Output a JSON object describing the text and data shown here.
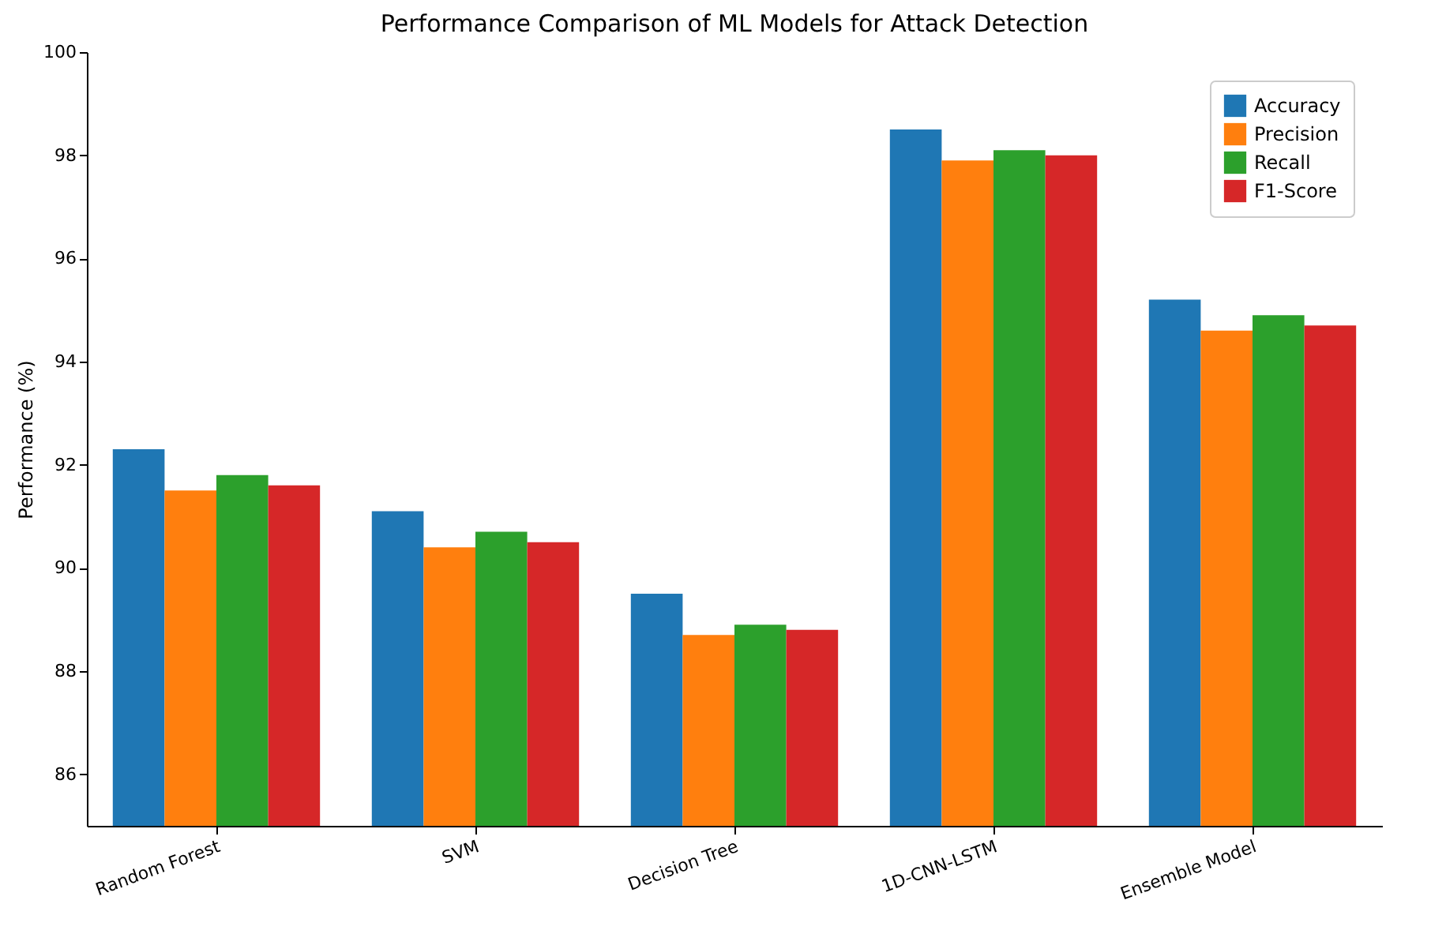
{
  "chart_data": {
    "type": "bar",
    "title": "Performance Comparison of ML Models for Attack Detection",
    "ylabel": "Performance (%)",
    "categories": [
      "Random Forest",
      "SVM",
      "Decision Tree",
      "1D-CNN-LSTM",
      "Ensemble Model"
    ],
    "series": [
      {
        "name": "Accuracy",
        "color": "#1f77b4",
        "values": [
          92.3,
          91.1,
          89.5,
          98.5,
          95.2
        ]
      },
      {
        "name": "Precision",
        "color": "#ff7f0e",
        "values": [
          91.5,
          90.4,
          88.7,
          97.9,
          94.6
        ]
      },
      {
        "name": "Recall",
        "color": "#2ca02c",
        "values": [
          91.8,
          90.7,
          88.9,
          98.1,
          94.9
        ]
      },
      {
        "name": "F1-Score",
        "color": "#d62728",
        "values": [
          91.6,
          90.5,
          88.8,
          98.0,
          94.7
        ]
      }
    ],
    "ylim": [
      85,
      100
    ],
    "yticks": [
      86,
      88,
      90,
      92,
      94,
      96,
      98,
      100
    ],
    "grid": false,
    "legend": "top right"
  }
}
